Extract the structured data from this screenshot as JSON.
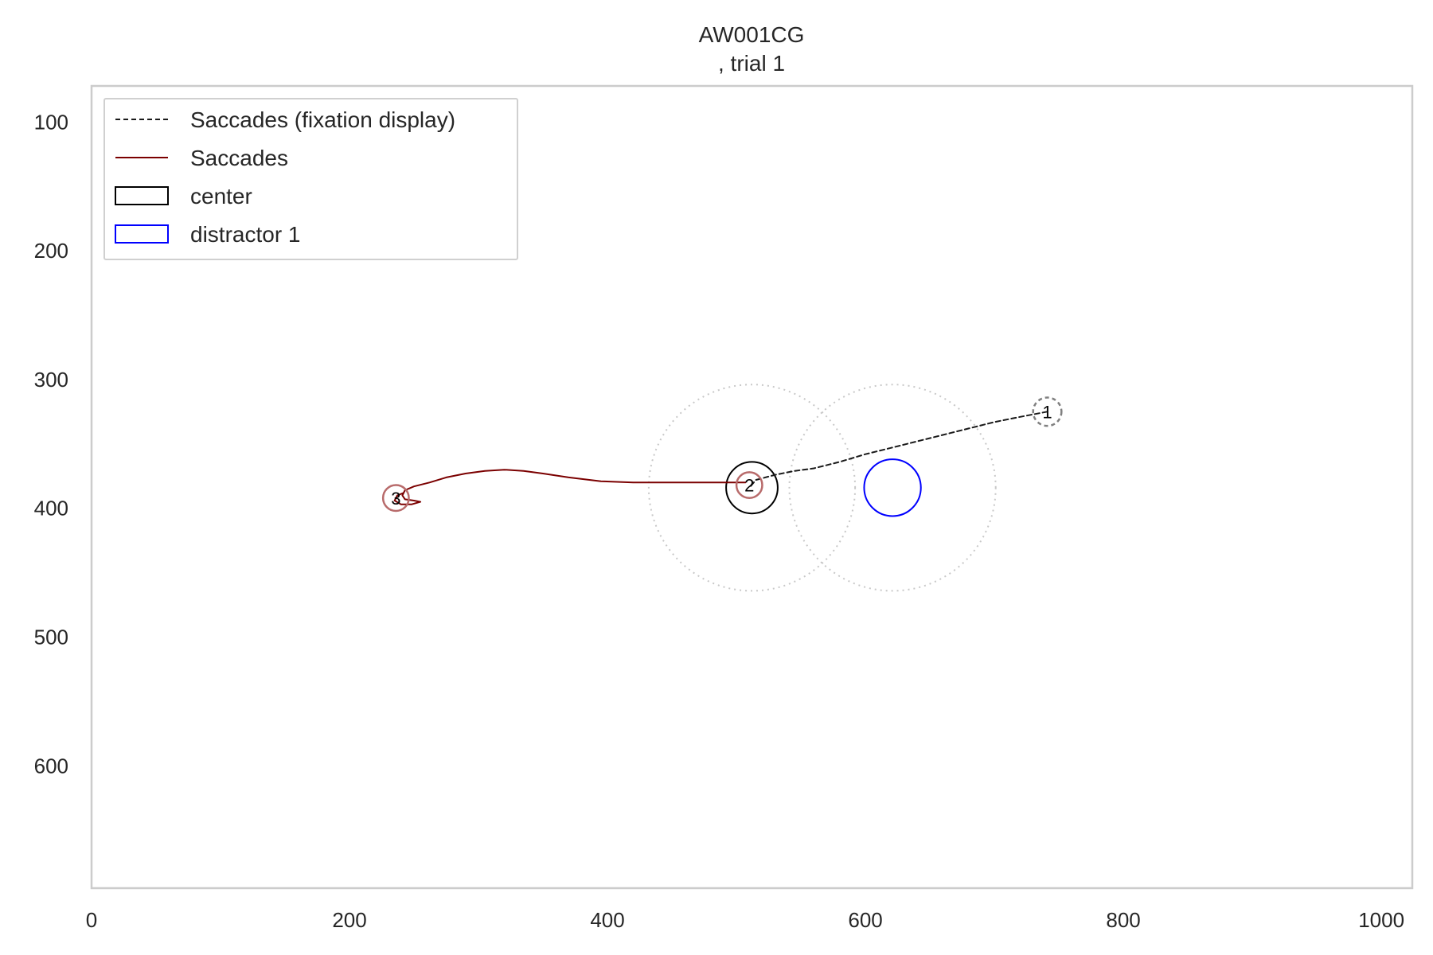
{
  "chart_data": {
    "type": "line",
    "title_line1": "AW001CG",
    "title_line2": ", trial 1",
    "xlim": [
      0,
      1024
    ],
    "ylim": [
      695,
      72
    ],
    "y_inverted": true,
    "grid": false,
    "x_ticks": [
      "0",
      "200",
      "400",
      "600",
      "800",
      "1000"
    ],
    "y_ticks": [
      "100",
      "200",
      "300",
      "400",
      "500",
      "600"
    ],
    "legend": {
      "placement": "top-left",
      "entries": [
        {
          "label": "Saccades (fixation display)",
          "style": "dashed-line",
          "color": "#1a1a1a"
        },
        {
          "label": "Saccades",
          "style": "line",
          "color": "#7b0000"
        },
        {
          "label": "center",
          "style": "box",
          "color": "#000000"
        },
        {
          "label": "distractor 1",
          "style": "box",
          "color": "#0000ff"
        }
      ]
    },
    "series": [
      {
        "name": "Saccades (fixation display)",
        "color": "#1a1a1a",
        "dash": true,
        "points": [
          [
            741,
            325
          ],
          [
            720,
            329
          ],
          [
            700,
            333
          ],
          [
            680,
            338
          ],
          [
            660,
            343
          ],
          [
            640,
            348
          ],
          [
            620,
            353
          ],
          [
            600,
            358
          ],
          [
            580,
            364
          ],
          [
            560,
            369
          ],
          [
            545,
            371
          ],
          [
            530,
            374
          ],
          [
            515,
            378
          ],
          [
            510,
            384
          ]
        ]
      },
      {
        "name": "Saccades",
        "color": "#7b0000",
        "dash": false,
        "points": [
          [
            507,
            380
          ],
          [
            480,
            380
          ],
          [
            450,
            380
          ],
          [
            420,
            380
          ],
          [
            395,
            379
          ],
          [
            370,
            376
          ],
          [
            350,
            373
          ],
          [
            335,
            371
          ],
          [
            320,
            370
          ],
          [
            305,
            371
          ],
          [
            290,
            373
          ],
          [
            275,
            376
          ],
          [
            262,
            380
          ],
          [
            250,
            383
          ],
          [
            243,
            386
          ],
          [
            241,
            390
          ],
          [
            243,
            393
          ],
          [
            250,
            394
          ],
          [
            255,
            395
          ],
          [
            248,
            397
          ],
          [
            240,
            397
          ],
          [
            235,
            394
          ],
          [
            237,
            390
          ],
          [
            242,
            388
          ]
        ]
      }
    ],
    "aois": [
      {
        "name": "center",
        "cx": 512,
        "cy": 384,
        "r": 20,
        "color": "#000000"
      },
      {
        "name": "distractor 1",
        "cx": 621,
        "cy": 384,
        "r": 22,
        "color": "#0000ff"
      }
    ],
    "regions": [
      {
        "cx": 512,
        "cy": 384,
        "r": 80,
        "color": "#c8c8c8"
      },
      {
        "cx": 621,
        "cy": 384,
        "r": 80,
        "color": "#c8c8c8"
      }
    ],
    "fixations": [
      {
        "label": "1",
        "x": 741,
        "y": 325,
        "r": 11,
        "style": "dashed",
        "color": "#808080"
      },
      {
        "label": "2",
        "x": 510,
        "y": 382,
        "r": 10,
        "style": "solid",
        "color": "#b86b6b"
      },
      {
        "label": "3",
        "x": 236,
        "y": 392,
        "r": 10,
        "style": "solid",
        "color": "#b86b6b"
      }
    ]
  }
}
